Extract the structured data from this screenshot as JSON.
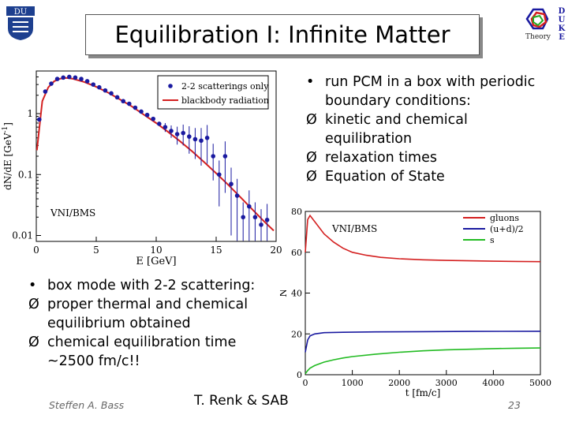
{
  "slide": {
    "title": "Equilibration I: Infinite Matter",
    "logo_right_letters": [
      "D",
      "U",
      "K",
      "E"
    ],
    "logo_right_word": "Theory",
    "logo_left_text": "DU",
    "author": "Steffen A. Bass",
    "credit": "T. Renk & SAB",
    "page_number": "23"
  },
  "bullets_top": {
    "items": [
      {
        "marker": "•",
        "text": "run PCM in a box with periodic boundary conditions:"
      },
      {
        "marker": "Ø",
        "text": "kinetic and chemical equilibration"
      },
      {
        "marker": "Ø",
        "text": "relaxation times"
      },
      {
        "marker": "Ø",
        "text": "Equation of State"
      }
    ]
  },
  "bullets_bottom": {
    "items": [
      {
        "marker": "•",
        "text": "box mode with 2-2 scattering:"
      },
      {
        "marker": "Ø",
        "text": "proper thermal and chemical equilibrium obtained"
      },
      {
        "marker": "Ø",
        "text": "chemical equilibration time ~2500 fm/c!!"
      }
    ]
  },
  "chart_data": [
    {
      "type": "scatter",
      "annotation": "VNI/BMS",
      "xlabel": "E [GeV]",
      "ylabel": "dN/dE [GeV",
      "ylabel_sup": "-1",
      "ylabel_close": "]",
      "xlim": [
        0,
        20
      ],
      "ylim": [
        0.008,
        5
      ],
      "yscale": "log",
      "xticks": [
        0,
        5,
        10,
        15,
        20
      ],
      "yticks": [
        {
          "value": 0.01,
          "label": "0.01"
        },
        {
          "value": 0.1,
          "label": "0.1"
        },
        {
          "value": 1,
          "label": "1"
        }
      ],
      "legend_position": "top-right",
      "colors": {
        "points": "#1a1aa0",
        "curve": "#d42020"
      },
      "series": [
        {
          "name": "2-2 scatterings only",
          "kind": "points",
          "points": [
            {
              "x": 0.25,
              "y": 0.8,
              "err": 0
            },
            {
              "x": 0.75,
              "y": 2.3,
              "err": 0
            },
            {
              "x": 1.25,
              "y": 3.1,
              "err": 0
            },
            {
              "x": 1.75,
              "y": 3.7,
              "err": 0
            },
            {
              "x": 2.25,
              "y": 3.9,
              "err": 0
            },
            {
              "x": 2.75,
              "y": 4.0,
              "err": 0
            },
            {
              "x": 3.25,
              "y": 3.9,
              "err": 0
            },
            {
              "x": 3.75,
              "y": 3.7,
              "err": 0
            },
            {
              "x": 4.25,
              "y": 3.4,
              "err": 0
            },
            {
              "x": 4.75,
              "y": 3.0,
              "err": 0
            },
            {
              "x": 5.25,
              "y": 2.7,
              "err": 0
            },
            {
              "x": 5.75,
              "y": 2.4,
              "err": 0
            },
            {
              "x": 6.25,
              "y": 2.15,
              "err": 0
            },
            {
              "x": 6.75,
              "y": 1.85,
              "err": 0
            },
            {
              "x": 7.25,
              "y": 1.6,
              "err": 0
            },
            {
              "x": 7.75,
              "y": 1.45,
              "err": 0
            },
            {
              "x": 8.25,
              "y": 1.25,
              "err": 0
            },
            {
              "x": 8.75,
              "y": 1.08,
              "err": 0
            },
            {
              "x": 9.25,
              "y": 0.95,
              "err": 0
            },
            {
              "x": 9.75,
              "y": 0.82,
              "err": 0
            },
            {
              "x": 10.25,
              "y": 0.68,
              "err": 0
            },
            {
              "x": 10.75,
              "y": 0.6,
              "err": 0.1
            },
            {
              "x": 11.25,
              "y": 0.52,
              "err": 0.12
            },
            {
              "x": 11.75,
              "y": 0.46,
              "err": 0.15
            },
            {
              "x": 12.25,
              "y": 0.48,
              "err": 0.18
            },
            {
              "x": 12.75,
              "y": 0.42,
              "err": 0.2
            },
            {
              "x": 13.25,
              "y": 0.38,
              "err": 0.2
            },
            {
              "x": 13.75,
              "y": 0.36,
              "err": 0.22
            },
            {
              "x": 14.25,
              "y": 0.4,
              "err": 0.25
            },
            {
              "x": 14.75,
              "y": 0.2,
              "err": 0.12
            },
            {
              "x": 15.25,
              "y": 0.1,
              "err": 0.07
            },
            {
              "x": 15.75,
              "y": 0.2,
              "err": 0.15
            },
            {
              "x": 16.25,
              "y": 0.07,
              "err": 0.06
            },
            {
              "x": 16.75,
              "y": 0.045,
              "err": 0.04
            },
            {
              "x": 17.25,
              "y": 0.02,
              "err": 0.015
            },
            {
              "x": 17.75,
              "y": 0.03,
              "err": 0.025
            },
            {
              "x": 18.25,
              "y": 0.02,
              "err": 0.015
            },
            {
              "x": 18.75,
              "y": 0.015,
              "err": 0.012
            },
            {
              "x": 19.25,
              "y": 0.018,
              "err": 0.015
            }
          ]
        },
        {
          "name": "blackbody radiation",
          "kind": "line",
          "points": [
            {
              "x": 0.05,
              "y": 0.25
            },
            {
              "x": 0.5,
              "y": 1.6
            },
            {
              "x": 1.0,
              "y": 2.7
            },
            {
              "x": 1.5,
              "y": 3.4
            },
            {
              "x": 2.0,
              "y": 3.75
            },
            {
              "x": 2.5,
              "y": 3.85
            },
            {
              "x": 3.0,
              "y": 3.75
            },
            {
              "x": 4.0,
              "y": 3.3
            },
            {
              "x": 5.0,
              "y": 2.75
            },
            {
              "x": 6.0,
              "y": 2.2
            },
            {
              "x": 7.0,
              "y": 1.7
            },
            {
              "x": 8.0,
              "y": 1.3
            },
            {
              "x": 9.0,
              "y": 0.95
            },
            {
              "x": 10.0,
              "y": 0.7
            },
            {
              "x": 11.0,
              "y": 0.5
            },
            {
              "x": 12.0,
              "y": 0.35
            },
            {
              "x": 13.0,
              "y": 0.24
            },
            {
              "x": 14.0,
              "y": 0.16
            },
            {
              "x": 15.0,
              "y": 0.105
            },
            {
              "x": 16.0,
              "y": 0.068
            },
            {
              "x": 17.0,
              "y": 0.043
            },
            {
              "x": 18.0,
              "y": 0.027
            },
            {
              "x": 19.0,
              "y": 0.017
            },
            {
              "x": 19.8,
              "y": 0.012
            }
          ]
        }
      ]
    },
    {
      "type": "line",
      "annotation": "VNI/BMS",
      "xlabel": "t [fm/c]",
      "ylabel": "N",
      "xlim": [
        0,
        5000
      ],
      "ylim": [
        0,
        80
      ],
      "xticks": [
        0,
        1000,
        2000,
        3000,
        4000,
        5000
      ],
      "yticks": [
        0,
        20,
        40,
        60,
        80
      ],
      "legend_position": "top-right",
      "colors": {
        "gluons": "#d42020",
        "quarks": "#1a1aa0",
        "s": "#22bb22"
      },
      "series": [
        {
          "name": "gluons",
          "color": "#d42020",
          "points": [
            {
              "x": 0,
              "y": 60
            },
            {
              "x": 50,
              "y": 76
            },
            {
              "x": 100,
              "y": 78
            },
            {
              "x": 200,
              "y": 75
            },
            {
              "x": 400,
              "y": 69
            },
            {
              "x": 600,
              "y": 65
            },
            {
              "x": 800,
              "y": 62
            },
            {
              "x": 1000,
              "y": 60
            },
            {
              "x": 1300,
              "y": 58.5
            },
            {
              "x": 1600,
              "y": 57.5
            },
            {
              "x": 2000,
              "y": 56.8
            },
            {
              "x": 2500,
              "y": 56.3
            },
            {
              "x": 3000,
              "y": 56
            },
            {
              "x": 3500,
              "y": 55.8
            },
            {
              "x": 4000,
              "y": 55.6
            },
            {
              "x": 4500,
              "y": 55.5
            },
            {
              "x": 5000,
              "y": 55.4
            }
          ]
        },
        {
          "name": "(u+d)/2",
          "color": "#1a1aa0",
          "points": [
            {
              "x": 0,
              "y": 11
            },
            {
              "x": 50,
              "y": 17
            },
            {
              "x": 100,
              "y": 19
            },
            {
              "x": 200,
              "y": 20
            },
            {
              "x": 400,
              "y": 20.6
            },
            {
              "x": 800,
              "y": 20.8
            },
            {
              "x": 1500,
              "y": 21
            },
            {
              "x": 2500,
              "y": 21.1
            },
            {
              "x": 3500,
              "y": 21.2
            },
            {
              "x": 5000,
              "y": 21.3
            }
          ]
        },
        {
          "name": "s",
          "color": "#22bb22",
          "points": [
            {
              "x": 0,
              "y": 0.5
            },
            {
              "x": 50,
              "y": 2
            },
            {
              "x": 100,
              "y": 3.2
            },
            {
              "x": 200,
              "y": 4.5
            },
            {
              "x": 400,
              "y": 6.2
            },
            {
              "x": 600,
              "y": 7.3
            },
            {
              "x": 800,
              "y": 8.2
            },
            {
              "x": 1000,
              "y": 8.9
            },
            {
              "x": 1500,
              "y": 10.1
            },
            {
              "x": 2000,
              "y": 11
            },
            {
              "x": 2500,
              "y": 11.7
            },
            {
              "x": 3000,
              "y": 12.2
            },
            {
              "x": 3500,
              "y": 12.5
            },
            {
              "x": 4000,
              "y": 12.8
            },
            {
              "x": 4500,
              "y": 13
            },
            {
              "x": 5000,
              "y": 13.1
            }
          ]
        }
      ]
    }
  ]
}
